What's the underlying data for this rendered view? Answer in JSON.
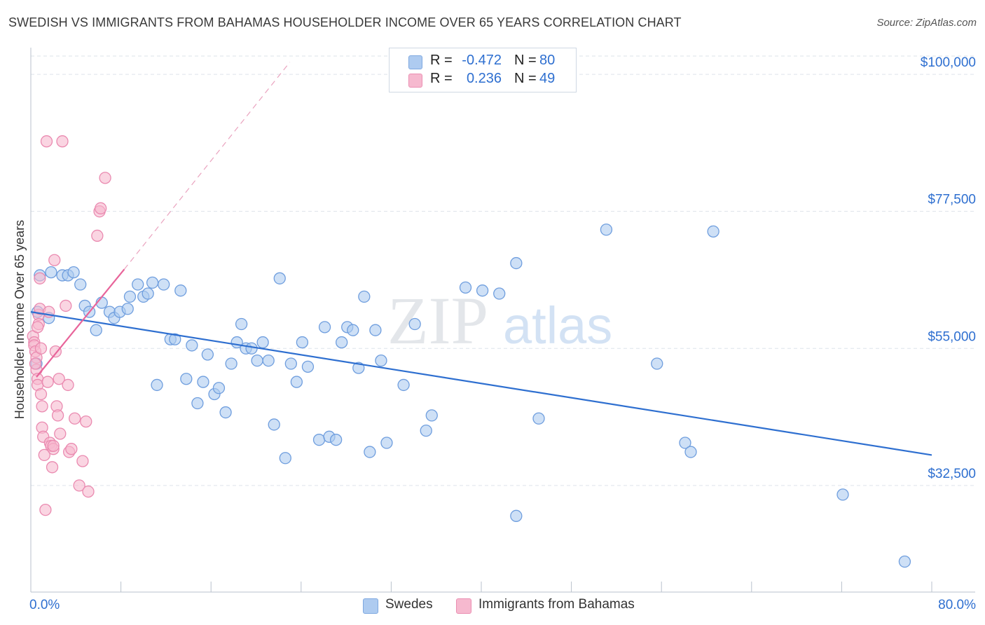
{
  "title": "SWEDISH VS IMMIGRANTS FROM BAHAMAS HOUSEHOLDER INCOME OVER 65 YEARS CORRELATION CHART",
  "source": "Source: ZipAtlas.com",
  "watermark": {
    "zip": "ZIP",
    "atlas": "atlas"
  },
  "colors": {
    "blue": "#2e6fd0",
    "blue_fill": "#aecbf0",
    "pink": "#e8649a",
    "pink_fill": "#f6b9cf",
    "grid": "#dde3ea",
    "axis_label": "#2e6fd0"
  },
  "legend": {
    "r_label": "R =",
    "n_label": "N =",
    "rows": [
      {
        "r": "-0.472",
        "n": "80"
      },
      {
        "r": "0.236",
        "n": "49"
      }
    ]
  },
  "chart_data": {
    "type": "scatter",
    "title": "SWEDISH VS IMMIGRANTS FROM BAHAMAS HOUSEHOLDER INCOME OVER 65 YEARS CORRELATION CHART",
    "xlabel": "",
    "ylabel": "Householder Income Over 65 years",
    "xlim": [
      0,
      80
    ],
    "ylim": [
      15000,
      103000
    ],
    "x_tick_labels": [
      "0.0%",
      "80.0%"
    ],
    "y_ticks": [
      32500,
      55000,
      77500,
      100000
    ],
    "y_tick_labels": [
      "$32,500",
      "$55,000",
      "$77,500",
      "$100,000"
    ],
    "grid": true,
    "legend_position": "top-center",
    "series": [
      {
        "name": "Swedes",
        "color": "#2e6fd0",
        "trend": {
          "x": [
            0,
            80
          ],
          "y": [
            61000,
            37500
          ]
        },
        "points": [
          [
            0.6,
            61000
          ],
          [
            0.8,
            67000
          ],
          [
            1.8,
            67500
          ],
          [
            2.8,
            67000
          ],
          [
            3.3,
            67000
          ],
          [
            3.8,
            67500
          ],
          [
            4.4,
            65500
          ],
          [
            4.8,
            62000
          ],
          [
            5.2,
            61000
          ],
          [
            5.8,
            58000
          ],
          [
            6.3,
            62500
          ],
          [
            7.0,
            61000
          ],
          [
            7.4,
            60000
          ],
          [
            7.9,
            61000
          ],
          [
            8.6,
            61500
          ],
          [
            8.8,
            63500
          ],
          [
            9.5,
            65500
          ],
          [
            10.0,
            63500
          ],
          [
            10.4,
            64000
          ],
          [
            10.8,
            65800
          ],
          [
            11.2,
            49000
          ],
          [
            11.8,
            65500
          ],
          [
            12.4,
            56500
          ],
          [
            12.8,
            56500
          ],
          [
            13.3,
            64500
          ],
          [
            13.8,
            50000
          ],
          [
            14.3,
            55500
          ],
          [
            14.8,
            46000
          ],
          [
            15.3,
            49500
          ],
          [
            15.7,
            54000
          ],
          [
            16.3,
            47500
          ],
          [
            16.7,
            48500
          ],
          [
            17.3,
            44500
          ],
          [
            17.8,
            52500
          ],
          [
            18.3,
            56000
          ],
          [
            18.7,
            59000
          ],
          [
            19.1,
            55000
          ],
          [
            19.6,
            55000
          ],
          [
            20.1,
            53000
          ],
          [
            20.6,
            56000
          ],
          [
            21.1,
            53000
          ],
          [
            21.6,
            42500
          ],
          [
            22.1,
            66500
          ],
          [
            22.6,
            37000
          ],
          [
            23.1,
            52500
          ],
          [
            23.6,
            49500
          ],
          [
            24.1,
            56000
          ],
          [
            24.6,
            52000
          ],
          [
            25.6,
            40000
          ],
          [
            26.1,
            58500
          ],
          [
            26.5,
            40500
          ],
          [
            27.1,
            40000
          ],
          [
            27.6,
            56000
          ],
          [
            28.1,
            58500
          ],
          [
            28.6,
            58000
          ],
          [
            29.1,
            51800
          ],
          [
            29.6,
            63500
          ],
          [
            30.1,
            38000
          ],
          [
            30.6,
            58000
          ],
          [
            31.1,
            53000
          ],
          [
            31.6,
            39500
          ],
          [
            33.1,
            49000
          ],
          [
            34.1,
            59000
          ],
          [
            35.1,
            41500
          ],
          [
            35.6,
            44000
          ],
          [
            38.6,
            65000
          ],
          [
            40.1,
            64500
          ],
          [
            41.6,
            64000
          ],
          [
            43.1,
            69000
          ],
          [
            45.1,
            43500
          ],
          [
            43.1,
            27500
          ],
          [
            51.1,
            74500
          ],
          [
            55.6,
            52500
          ],
          [
            58.1,
            39500
          ],
          [
            58.6,
            38000
          ],
          [
            60.6,
            74200
          ],
          [
            72.1,
            31000
          ],
          [
            77.6,
            20000
          ],
          [
            0.5,
            52500
          ],
          [
            1.6,
            60000
          ]
        ]
      },
      {
        "name": "Immigrants from Bahamas",
        "color": "#e8649a",
        "trend": {
          "x": [
            0.5,
            8.3
          ],
          "y": [
            50300,
            68000
          ]
        },
        "trend_extension": {
          "x": [
            8.3,
            23.0
          ],
          "y": [
            68000,
            102000
          ]
        },
        "points": [
          [
            0.2,
            57000
          ],
          [
            0.3,
            56000
          ],
          [
            0.3,
            55500
          ],
          [
            0.4,
            54500
          ],
          [
            0.5,
            53500
          ],
          [
            0.5,
            51500
          ],
          [
            0.6,
            50000
          ],
          [
            0.6,
            49000
          ],
          [
            0.7,
            60500
          ],
          [
            0.7,
            59000
          ],
          [
            0.8,
            61500
          ],
          [
            0.8,
            66500
          ],
          [
            0.9,
            55000
          ],
          [
            1.0,
            45500
          ],
          [
            1.0,
            42000
          ],
          [
            1.1,
            40500
          ],
          [
            1.2,
            37500
          ],
          [
            1.3,
            28500
          ],
          [
            1.4,
            89000
          ],
          [
            1.6,
            61000
          ],
          [
            1.7,
            39500
          ],
          [
            1.8,
            39000
          ],
          [
            1.9,
            35500
          ],
          [
            2.0,
            38500
          ],
          [
            2.1,
            69500
          ],
          [
            2.2,
            54500
          ],
          [
            2.3,
            45500
          ],
          [
            2.4,
            44000
          ],
          [
            2.5,
            50000
          ],
          [
            2.6,
            41000
          ],
          [
            2.8,
            89000
          ],
          [
            3.1,
            62000
          ],
          [
            3.3,
            49000
          ],
          [
            3.4,
            38000
          ],
          [
            3.6,
            38500
          ],
          [
            3.9,
            43500
          ],
          [
            4.3,
            32500
          ],
          [
            4.6,
            36500
          ],
          [
            4.9,
            43000
          ],
          [
            5.1,
            31500
          ],
          [
            5.9,
            73500
          ],
          [
            6.1,
            77500
          ],
          [
            6.2,
            78000
          ],
          [
            6.6,
            83000
          ],
          [
            0.4,
            52500
          ],
          [
            0.9,
            47500
          ],
          [
            1.5,
            49500
          ],
          [
            2.0,
            39000
          ],
          [
            0.6,
            58500
          ]
        ]
      }
    ]
  },
  "bottom_legend": [
    {
      "label": "Swedes"
    },
    {
      "label": "Immigrants from Bahamas"
    }
  ]
}
